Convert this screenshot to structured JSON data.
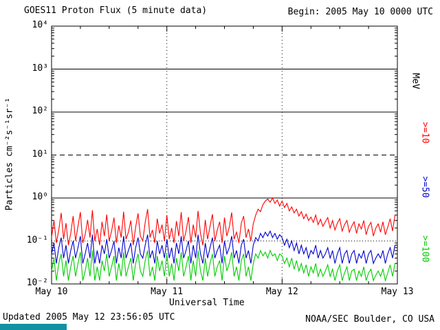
{
  "header": {
    "title": "GOES11 Proton Flux (5 minute data)",
    "begin_label": "Begin: 2005 May 10 0000 UTC"
  },
  "footer": {
    "updated": "Updated 2005 May 12 23:56:05 UTC",
    "source": "NOAA/SEC Boulder, CO USA",
    "bar_color": "#1291a3"
  },
  "chart_data": {
    "type": "line",
    "title": "GOES11 Proton Flux (5 minute data)",
    "xlabel": "Universal Time",
    "ylabel": "Particles cm⁻²s⁻¹sr⁻¹",
    "x_range_days": [
      0,
      3
    ],
    "x_tick_labels": [
      "May 10",
      "May 11",
      "May 12",
      "May 13"
    ],
    "y_log_range": [
      -2,
      4
    ],
    "y_tick_labels": [
      "10⁻²",
      "10⁻¹",
      "10⁰",
      "10¹",
      "10²",
      "10³",
      "10⁴"
    ],
    "grid": {
      "solid_decades": [
        0,
        2,
        3
      ],
      "dashed_decades": [
        1
      ],
      "dotted_decades": [
        -1
      ],
      "vertical_dotted_days": [
        1,
        2
      ]
    },
    "right_axis_labels": [
      {
        "text": "MeV",
        "color": "#000000"
      },
      {
        "text": ">=10",
        "color": "#ff0000"
      },
      {
        "text": ">=50",
        "color": "#0000cc"
      },
      {
        "text": ">=100",
        "color": "#00cc00"
      }
    ],
    "points_per_day": 48,
    "series": [
      {
        "name": ">=10 MeV",
        "color": "#ff0000",
        "values": [
          0.12,
          0.3,
          0.09,
          0.18,
          0.45,
          0.11,
          0.26,
          0.08,
          0.15,
          0.38,
          0.1,
          0.22,
          0.47,
          0.09,
          0.14,
          0.31,
          0.12,
          0.52,
          0.1,
          0.19,
          0.08,
          0.28,
          0.13,
          0.41,
          0.1,
          0.17,
          0.35,
          0.09,
          0.23,
          0.12,
          0.48,
          0.11,
          0.16,
          0.3,
          0.08,
          0.21,
          0.44,
          0.13,
          0.1,
          0.27,
          0.55,
          0.12,
          0.18,
          0.09,
          0.33,
          0.15,
          0.24,
          0.1,
          0.4,
          0.11,
          0.2,
          0.09,
          0.29,
          0.13,
          0.47,
          0.1,
          0.17,
          0.36,
          0.09,
          0.24,
          0.12,
          0.5,
          0.15,
          0.08,
          0.31,
          0.11,
          0.22,
          0.42,
          0.1,
          0.18,
          0.28,
          0.09,
          0.35,
          0.13,
          0.21,
          0.46,
          0.11,
          0.16,
          0.09,
          0.26,
          0.38,
          0.12,
          0.19,
          0.1,
          0.25,
          0.4,
          0.55,
          0.48,
          0.7,
          0.85,
          0.95,
          0.8,
          1.0,
          0.75,
          0.9,
          0.65,
          0.85,
          0.6,
          0.75,
          0.5,
          0.62,
          0.45,
          0.55,
          0.38,
          0.48,
          0.33,
          0.42,
          0.3,
          0.36,
          0.27,
          0.4,
          0.24,
          0.32,
          0.22,
          0.28,
          0.35,
          0.2,
          0.3,
          0.18,
          0.26,
          0.33,
          0.17,
          0.24,
          0.3,
          0.16,
          0.22,
          0.28,
          0.15,
          0.25,
          0.19,
          0.3,
          0.14,
          0.22,
          0.27,
          0.13,
          0.2,
          0.25,
          0.16,
          0.28,
          0.14,
          0.21,
          0.33,
          0.17,
          0.4
        ]
      },
      {
        "name": ">=50 MeV",
        "color": "#0000cc",
        "values": [
          0.05,
          0.09,
          0.03,
          0.07,
          0.12,
          0.04,
          0.08,
          0.03,
          0.06,
          0.1,
          0.04,
          0.07,
          0.13,
          0.03,
          0.05,
          0.09,
          0.04,
          0.14,
          0.03,
          0.06,
          0.03,
          0.08,
          0.05,
          0.11,
          0.04,
          0.06,
          0.1,
          0.03,
          0.07,
          0.04,
          0.13,
          0.04,
          0.06,
          0.09,
          0.03,
          0.07,
          0.12,
          0.05,
          0.04,
          0.08,
          0.14,
          0.04,
          0.06,
          0.03,
          0.1,
          0.05,
          0.08,
          0.04,
          0.11,
          0.04,
          0.07,
          0.03,
          0.09,
          0.05,
          0.13,
          0.04,
          0.06,
          0.1,
          0.03,
          0.08,
          0.04,
          0.14,
          0.05,
          0.03,
          0.09,
          0.04,
          0.07,
          0.12,
          0.04,
          0.06,
          0.08,
          0.03,
          0.1,
          0.05,
          0.07,
          0.13,
          0.04,
          0.06,
          0.03,
          0.08,
          0.11,
          0.04,
          0.06,
          0.03,
          0.08,
          0.12,
          0.1,
          0.15,
          0.12,
          0.16,
          0.13,
          0.17,
          0.12,
          0.15,
          0.11,
          0.14,
          0.12,
          0.08,
          0.11,
          0.07,
          0.1,
          0.06,
          0.09,
          0.05,
          0.08,
          0.05,
          0.07,
          0.04,
          0.06,
          0.05,
          0.08,
          0.04,
          0.06,
          0.04,
          0.05,
          0.07,
          0.04,
          0.06,
          0.03,
          0.05,
          0.07,
          0.03,
          0.05,
          0.06,
          0.03,
          0.05,
          0.06,
          0.03,
          0.05,
          0.04,
          0.06,
          0.03,
          0.05,
          0.06,
          0.03,
          0.04,
          0.05,
          0.04,
          0.06,
          0.03,
          0.05,
          0.07,
          0.04,
          0.08
        ]
      },
      {
        "name": ">=100 MeV",
        "color": "#00cc00",
        "values": [
          0.02,
          0.04,
          0.012,
          0.03,
          0.05,
          0.015,
          0.035,
          0.012,
          0.025,
          0.045,
          0.015,
          0.03,
          0.055,
          0.012,
          0.02,
          0.04,
          0.015,
          0.06,
          0.012,
          0.025,
          0.012,
          0.035,
          0.02,
          0.05,
          0.015,
          0.025,
          0.045,
          0.012,
          0.03,
          0.015,
          0.055,
          0.015,
          0.025,
          0.04,
          0.012,
          0.03,
          0.05,
          0.02,
          0.015,
          0.035,
          0.06,
          0.015,
          0.025,
          0.012,
          0.045,
          0.02,
          0.035,
          0.015,
          0.05,
          0.015,
          0.03,
          0.012,
          0.04,
          0.02,
          0.055,
          0.015,
          0.025,
          0.045,
          0.012,
          0.035,
          0.015,
          0.06,
          0.02,
          0.012,
          0.04,
          0.015,
          0.03,
          0.05,
          0.015,
          0.025,
          0.035,
          0.012,
          0.045,
          0.02,
          0.03,
          0.055,
          0.015,
          0.025,
          0.012,
          0.035,
          0.05,
          0.015,
          0.025,
          0.012,
          0.03,
          0.05,
          0.04,
          0.06,
          0.045,
          0.055,
          0.04,
          0.06,
          0.045,
          0.05,
          0.035,
          0.05,
          0.045,
          0.03,
          0.04,
          0.025,
          0.04,
          0.022,
          0.035,
          0.02,
          0.03,
          0.018,
          0.028,
          0.015,
          0.025,
          0.018,
          0.03,
          0.015,
          0.022,
          0.015,
          0.02,
          0.028,
          0.015,
          0.022,
          0.012,
          0.02,
          0.028,
          0.012,
          0.018,
          0.025,
          0.012,
          0.02,
          0.022,
          0.012,
          0.02,
          0.015,
          0.025,
          0.012,
          0.018,
          0.022,
          0.012,
          0.016,
          0.02,
          0.015,
          0.022,
          0.012,
          0.018,
          0.028,
          0.015,
          0.03
        ]
      }
    ]
  }
}
